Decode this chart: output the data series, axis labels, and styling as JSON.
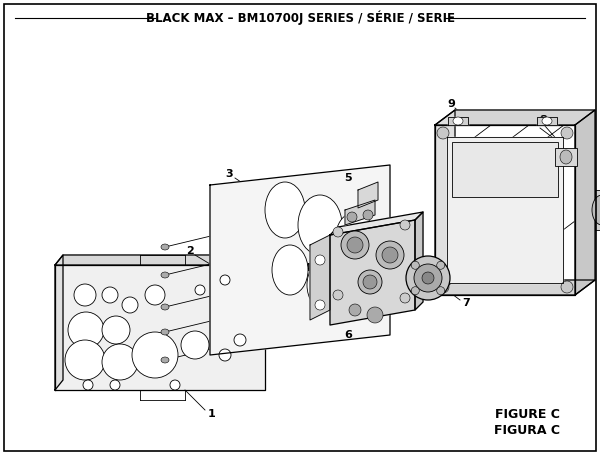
{
  "title": "BLACK MAX – BM10700J SERIES / SÉRIE / SERIE",
  "figure_label": "FIGURE C",
  "figura_label": "FIGURA C",
  "bg_color": "#ffffff",
  "line_color": "#000000",
  "title_fontsize": 8.5,
  "fig_label_fontsize": 9
}
